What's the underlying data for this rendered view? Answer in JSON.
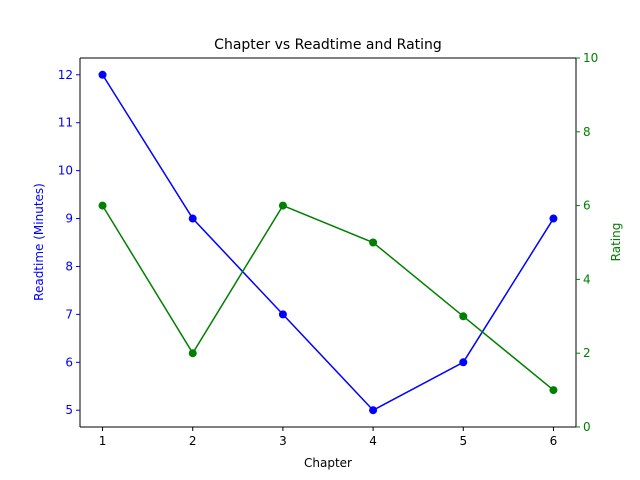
{
  "chart_data": {
    "type": "line",
    "title": "Chapter vs Readtime and Rating",
    "xlabel": "Chapter",
    "ylabel_left": "Readtime (Minutes)",
    "ylabel_right": "Rating",
    "x": [
      1,
      2,
      3,
      4,
      5,
      6
    ],
    "xticks": [
      "1",
      "2",
      "3",
      "4",
      "5",
      "6"
    ],
    "xlim": [
      0.75,
      6.25
    ],
    "series": [
      {
        "axis": "left",
        "color": "#0000ff",
        "values": [
          12,
          9,
          7,
          5,
          6,
          9
        ]
      },
      {
        "axis": "right",
        "color": "#008000",
        "values": [
          6,
          2,
          6,
          5,
          3,
          1
        ]
      }
    ],
    "ylim_left": [
      4.65,
      12.35
    ],
    "yticks_left": [
      "5",
      "6",
      "7",
      "8",
      "9",
      "10",
      "11",
      "12"
    ],
    "ylim_right": [
      0,
      10
    ],
    "yticks_right": [
      "0",
      "2",
      "4",
      "6",
      "8",
      "10"
    ],
    "grid": false,
    "left_axis_color": "#0000ff",
    "right_axis_color": "#008000"
  }
}
